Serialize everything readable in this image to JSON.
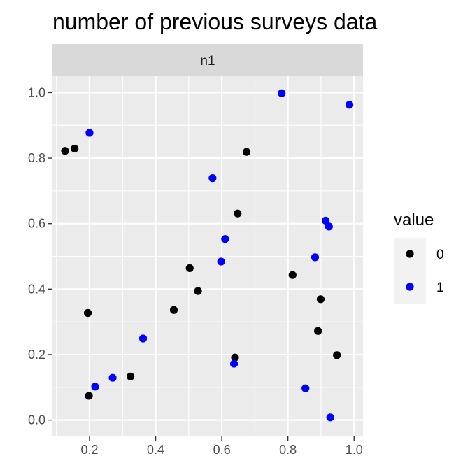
{
  "chart_data": {
    "type": "scatter",
    "title": "number of previous surveys data",
    "facet_label": "n1",
    "xlabel": "",
    "ylabel": "",
    "xlim": [
      0.088,
      1.027
    ],
    "ylim": [
      -0.05,
      1.05
    ],
    "x_ticks": [
      0.2,
      0.4,
      0.6,
      0.8,
      1.0
    ],
    "x_tick_labels": [
      "0.2",
      "0.4",
      "0.6",
      "0.8",
      "1.0"
    ],
    "y_ticks": [
      0.0,
      0.2,
      0.4,
      0.6,
      0.8,
      1.0
    ],
    "y_tick_labels": [
      "0.0",
      "0.2",
      "0.4",
      "0.6",
      "0.8",
      "1.0"
    ],
    "grid": true,
    "legend": {
      "title": "value",
      "placement": "right"
    },
    "series": [
      {
        "name": "0",
        "color": "#000000",
        "points": [
          {
            "x": 0.126,
            "y": 0.822
          },
          {
            "x": 0.155,
            "y": 0.829
          },
          {
            "x": 0.195,
            "y": 0.327
          },
          {
            "x": 0.198,
            "y": 0.074
          },
          {
            "x": 0.324,
            "y": 0.133
          },
          {
            "x": 0.455,
            "y": 0.336
          },
          {
            "x": 0.503,
            "y": 0.464
          },
          {
            "x": 0.528,
            "y": 0.394
          },
          {
            "x": 0.64,
            "y": 0.191
          },
          {
            "x": 0.648,
            "y": 0.631
          },
          {
            "x": 0.675,
            "y": 0.819
          },
          {
            "x": 0.814,
            "y": 0.443
          },
          {
            "x": 0.891,
            "y": 0.272
          },
          {
            "x": 0.899,
            "y": 0.369
          },
          {
            "x": 0.948,
            "y": 0.198
          }
        ]
      },
      {
        "name": "1",
        "color": "#0000ff",
        "points": [
          {
            "x": 0.2,
            "y": 0.877
          },
          {
            "x": 0.217,
            "y": 0.102
          },
          {
            "x": 0.27,
            "y": 0.129
          },
          {
            "x": 0.362,
            "y": 0.249
          },
          {
            "x": 0.572,
            "y": 0.739
          },
          {
            "x": 0.598,
            "y": 0.484
          },
          {
            "x": 0.61,
            "y": 0.553
          },
          {
            "x": 0.637,
            "y": 0.172
          },
          {
            "x": 0.781,
            "y": 0.998
          },
          {
            "x": 0.853,
            "y": 0.097
          },
          {
            "x": 0.882,
            "y": 0.497
          },
          {
            "x": 0.914,
            "y": 0.609
          },
          {
            "x": 0.924,
            "y": 0.591
          },
          {
            "x": 0.928,
            "y": 0.008
          },
          {
            "x": 0.986,
            "y": 0.963
          }
        ]
      }
    ]
  }
}
